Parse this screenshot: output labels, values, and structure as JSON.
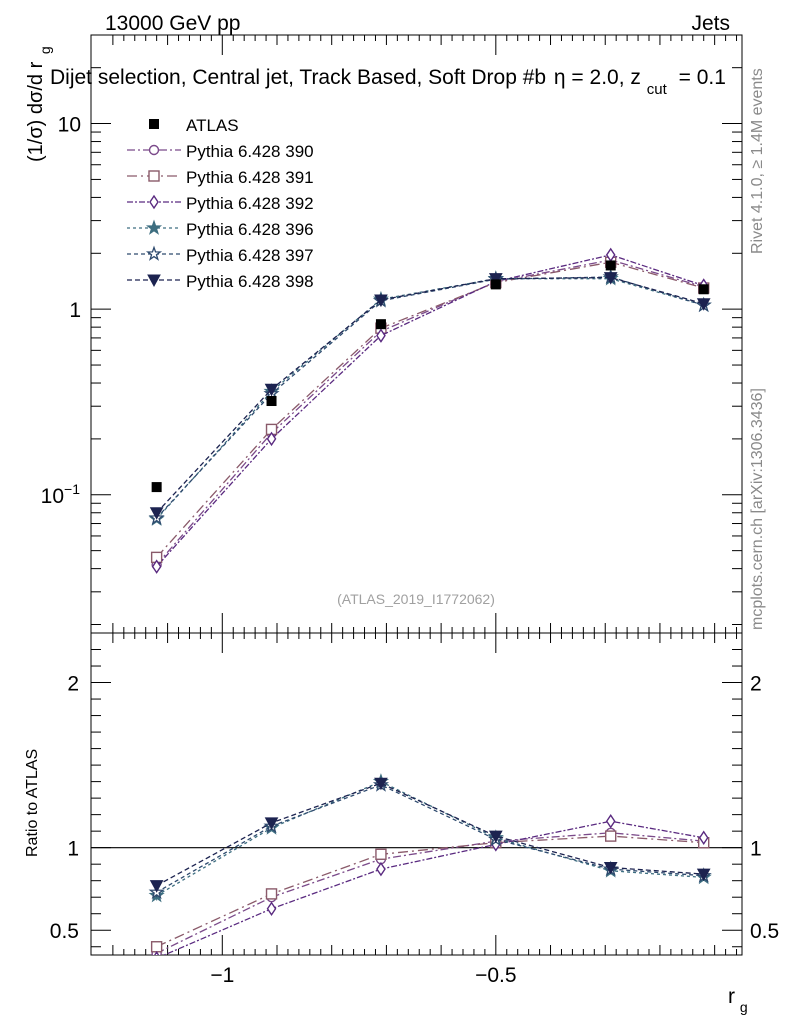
{
  "header": {
    "left": "13000 GeV pp",
    "right": "Jets"
  },
  "plot_title": {
    "main": "Dijet selection, Central jet, Track Based, Soft Drop #b",
    "eta": "η = 2.0, z",
    "sub": "cut",
    "tail": "= 0.1"
  },
  "side_labels": {
    "rivet": "Rivet 4.1.0, ≥ 1.4M events",
    "mcplots": "mcplots.cern.ch [arXiv:1306.3436]"
  },
  "watermark": "(ATLAS_2019_I1772062)",
  "colors": {
    "data": "#000000",
    "p390": "#7b4a8a",
    "p391": "#8a5a6a",
    "p392": "#5a2a80",
    "p396": "#3d6e80",
    "p397": "#2e4a6e",
    "p398": "#1c2350",
    "refline": "#000000"
  },
  "chart_data": {
    "type": "line",
    "x_axis": {
      "label": "r",
      "label_sub": "g",
      "range": [
        -1.24,
        -0.05
      ],
      "ticks": [
        -1,
        -0.5
      ],
      "tick_labels": [
        "−1",
        "−0.5"
      ]
    },
    "main_panel": {
      "ylabel": "(1/σ) dσ/d r",
      "ylabel_sub": "g",
      "yscale": "log",
      "ylim": [
        0.018,
        30
      ],
      "major_ticks": [
        0.1,
        1,
        10
      ],
      "tick_labels": [
        {
          "base": "10",
          "exp": "−1"
        },
        {
          "base": "1",
          "exp": ""
        },
        {
          "base": "10",
          "exp": ""
        }
      ],
      "legend_position": "top-left",
      "x": [
        -1.12,
        -0.91,
        -0.71,
        -0.5,
        -0.29,
        -0.12
      ],
      "data": {
        "name": "ATLAS",
        "values": [
          0.11,
          0.32,
          0.83,
          1.36,
          1.72,
          1.28
        ],
        "errors": [
          0.004,
          0.01,
          0.025,
          0.04,
          0.06,
          0.04
        ]
      },
      "series": [
        {
          "key": "p390",
          "name": "Pythia 6.428 390",
          "marker": "circle",
          "dash": "8,3,2,3",
          "values": [
            0.042,
            0.215,
            0.76,
            1.4,
            1.84,
            1.32
          ]
        },
        {
          "key": "p391",
          "name": "Pythia 6.428 391",
          "marker": "square",
          "dash": "10,4,2,4",
          "values": [
            0.046,
            0.225,
            0.79,
            1.39,
            1.79,
            1.3
          ]
        },
        {
          "key": "p392",
          "name": "Pythia 6.428 392",
          "marker": "diamond",
          "dash": "6,2,2,2",
          "values": [
            0.041,
            0.2,
            0.72,
            1.41,
            1.96,
            1.34
          ]
        },
        {
          "key": "p396",
          "name": "Pythia 6.428 396",
          "marker": "star",
          "dash": "3,3",
          "values": [
            0.074,
            0.36,
            1.13,
            1.46,
            1.46,
            1.05
          ]
        },
        {
          "key": "p397",
          "name": "Pythia 6.428 397",
          "marker": "staro",
          "dash": "4,3",
          "values": [
            0.075,
            0.35,
            1.11,
            1.45,
            1.49,
            1.05
          ]
        },
        {
          "key": "p398",
          "name": "Pythia 6.428 398",
          "marker": "tri",
          "dash": "5,3",
          "values": [
            0.08,
            0.37,
            1.12,
            1.46,
            1.48,
            1.07
          ]
        }
      ]
    },
    "ratio_panel": {
      "ylabel": "Ratio to ATLAS",
      "ylim": [
        0.35,
        2.3
      ],
      "ticks": [
        0.5,
        1,
        2
      ],
      "tick_labels": [
        "0.5",
        "1",
        "2"
      ],
      "reference": 1,
      "series": [
        {
          "key": "p390",
          "values": [
            0.36,
            0.7,
            0.93,
            1.04,
            1.09,
            1.04
          ]
        },
        {
          "key": "p391",
          "values": [
            0.4,
            0.72,
            0.96,
            1.03,
            1.07,
            1.03
          ]
        },
        {
          "key": "p392",
          "values": [
            0.33,
            0.63,
            0.87,
            1.02,
            1.16,
            1.06
          ]
        },
        {
          "key": "p396",
          "values": [
            0.71,
            1.12,
            1.4,
            1.06,
            0.86,
            0.82
          ]
        },
        {
          "key": "p397",
          "values": [
            0.73,
            1.13,
            1.38,
            1.05,
            0.87,
            0.83
          ]
        },
        {
          "key": "p398",
          "values": [
            0.77,
            1.15,
            1.39,
            1.07,
            0.88,
            0.84
          ]
        }
      ],
      "errors": [
        0.03,
        0.02,
        0.02,
        0.02,
        0.02,
        0.02
      ]
    }
  }
}
